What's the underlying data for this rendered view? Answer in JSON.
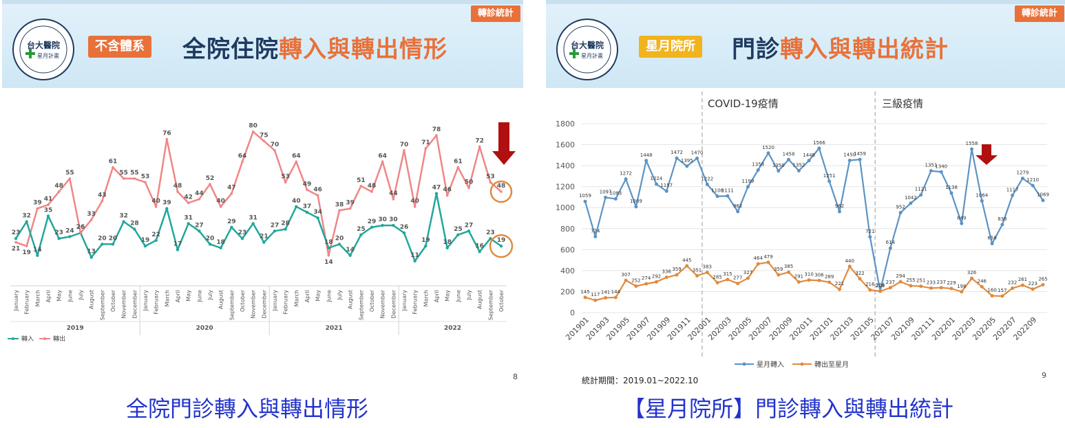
{
  "left": {
    "tag": "轉診統計",
    "logo": {
      "name": "台大醫院",
      "sub": "星月計畫"
    },
    "pill": "不含體系",
    "title_dark": "全院住院",
    "title_accent": "轉入與轉出情形",
    "page_number": "8",
    "caption": "全院門診轉入與轉出情形",
    "colors": {
      "in": "#20a79b",
      "out": "#f08585",
      "arrow": "#b01010",
      "circle": "#e08a3c"
    }
  },
  "right": {
    "tag": "轉診統計",
    "logo": {
      "name": "台大醫院",
      "sub": "星月計畫"
    },
    "pill": "星月院所",
    "title_dark": "門診",
    "title_accent": "轉入與轉出統計",
    "page_number": "9",
    "period": "統計期間：2019.01~2022.10",
    "caption": "【星月院所】門診轉入與轉出統計",
    "colors": {
      "in": "#5b93c4",
      "out": "#e08a3c",
      "arrow": "#b01010"
    }
  },
  "chart_data": [
    {
      "type": "line",
      "months": [
        "January",
        "February",
        "March",
        "April",
        "May",
        "June",
        "July",
        "August",
        "September",
        "October",
        "November",
        "December",
        "January",
        "February",
        "March",
        "April",
        "May",
        "June",
        "July",
        "August",
        "September",
        "October",
        "November",
        "December",
        "January",
        "February",
        "March",
        "April",
        "May",
        "June",
        "July",
        "August",
        "September",
        "October",
        "November",
        "December",
        "January",
        "February",
        "March",
        "April",
        "May",
        "June",
        "July",
        "August",
        "September",
        "October"
      ],
      "years": [
        "2019",
        "2020",
        "2021",
        "2022"
      ],
      "series": [
        {
          "name": "轉入",
          "values": [
            23,
            32,
            14,
            35,
            23,
            24,
            26,
            13,
            20,
            20,
            32,
            28,
            19,
            22,
            39,
            17,
            31,
            27,
            20,
            18,
            29,
            23,
            31,
            21,
            27,
            28,
            40,
            37,
            34,
            18,
            20,
            14,
            25,
            29,
            30,
            30,
            26,
            11,
            19,
            47,
            18,
            25,
            27,
            16,
            23,
            19
          ]
        },
        {
          "name": "轉出",
          "values": [
            21,
            19,
            39,
            41,
            48,
            55,
            26,
            33,
            43,
            61,
            55,
            55,
            53,
            40,
            76,
            48,
            42,
            44,
            52,
            40,
            47,
            64,
            80,
            75,
            70,
            53,
            64,
            49,
            46,
            14,
            38,
            39,
            51,
            48,
            64,
            44,
            70,
            40,
            71,
            78,
            46,
            61,
            50,
            72,
            53,
            48
          ]
        }
      ],
      "ylim": [
        0,
        85
      ],
      "legend": "bottom-left",
      "highlight_labels": [
        "48",
        "19"
      ]
    },
    {
      "type": "line",
      "x": [
        "201901",
        "201902",
        "201903",
        "201904",
        "201905",
        "201906",
        "201907",
        "201908",
        "201909",
        "201910",
        "201911",
        "201912",
        "202001",
        "202002",
        "202003",
        "202004",
        "202005",
        "202006",
        "202007",
        "202008",
        "202009",
        "202010",
        "202011",
        "202012",
        "202101",
        "202102",
        "202103",
        "202104",
        "202105",
        "202106",
        "202107",
        "202108",
        "202109",
        "202110",
        "202111",
        "202112",
        "202201",
        "202202",
        "202203",
        "202204",
        "202205",
        "202206",
        "202207",
        "202208",
        "202209",
        "202210"
      ],
      "xtick_labels": [
        "201901",
        "201903",
        "201905",
        "201907",
        "201909",
        "201911",
        "202001",
        "202003",
        "202005",
        "202007",
        "202009",
        "202011",
        "202101",
        "202103",
        "202105",
        "202107",
        "202109",
        "202111",
        "202201",
        "202203",
        "202205",
        "202207",
        "202209"
      ],
      "series": [
        {
          "name": "星月轉入",
          "values": [
            1059,
            724,
            1097,
            1083,
            1272,
            1009,
            1448,
            1224,
            1157,
            1472,
            1395,
            1470,
            1222,
            1108,
            1111,
            962,
            1199,
            1358,
            1520,
            1350,
            1458,
            1352,
            1448,
            1566,
            1251,
            962,
            1450,
            1459,
            721,
            206,
            614,
            952,
            1042,
            1121,
            1351,
            1340,
            1138,
            849,
            1558,
            1064,
            658,
            838,
            1117,
            1279,
            1210,
            1069
          ]
        },
        {
          "name": "轉出至星月",
          "values": [
            145,
            117,
            141,
            144,
            307,
            252,
            274,
            292,
            336,
            359,
            445,
            351,
            383,
            285,
            315,
            277,
            327,
            464,
            479,
            359,
            385,
            291,
            310,
            306,
            289,
            221,
            440,
            322,
            216,
            203,
            237,
            294,
            255,
            251,
            233,
            237,
            229,
            198,
            326,
            246,
            160,
            157,
            232,
            261,
            223,
            265
          ]
        }
      ],
      "yticks": [
        "0",
        "200",
        "400",
        "600",
        "800",
        "1000",
        "1200",
        "1400",
        "1600",
        "1800"
      ],
      "ylim": [
        0,
        1800
      ],
      "annotations": [
        "COVID-19疫情",
        "三級疫情"
      ],
      "legend": "bottom"
    }
  ]
}
